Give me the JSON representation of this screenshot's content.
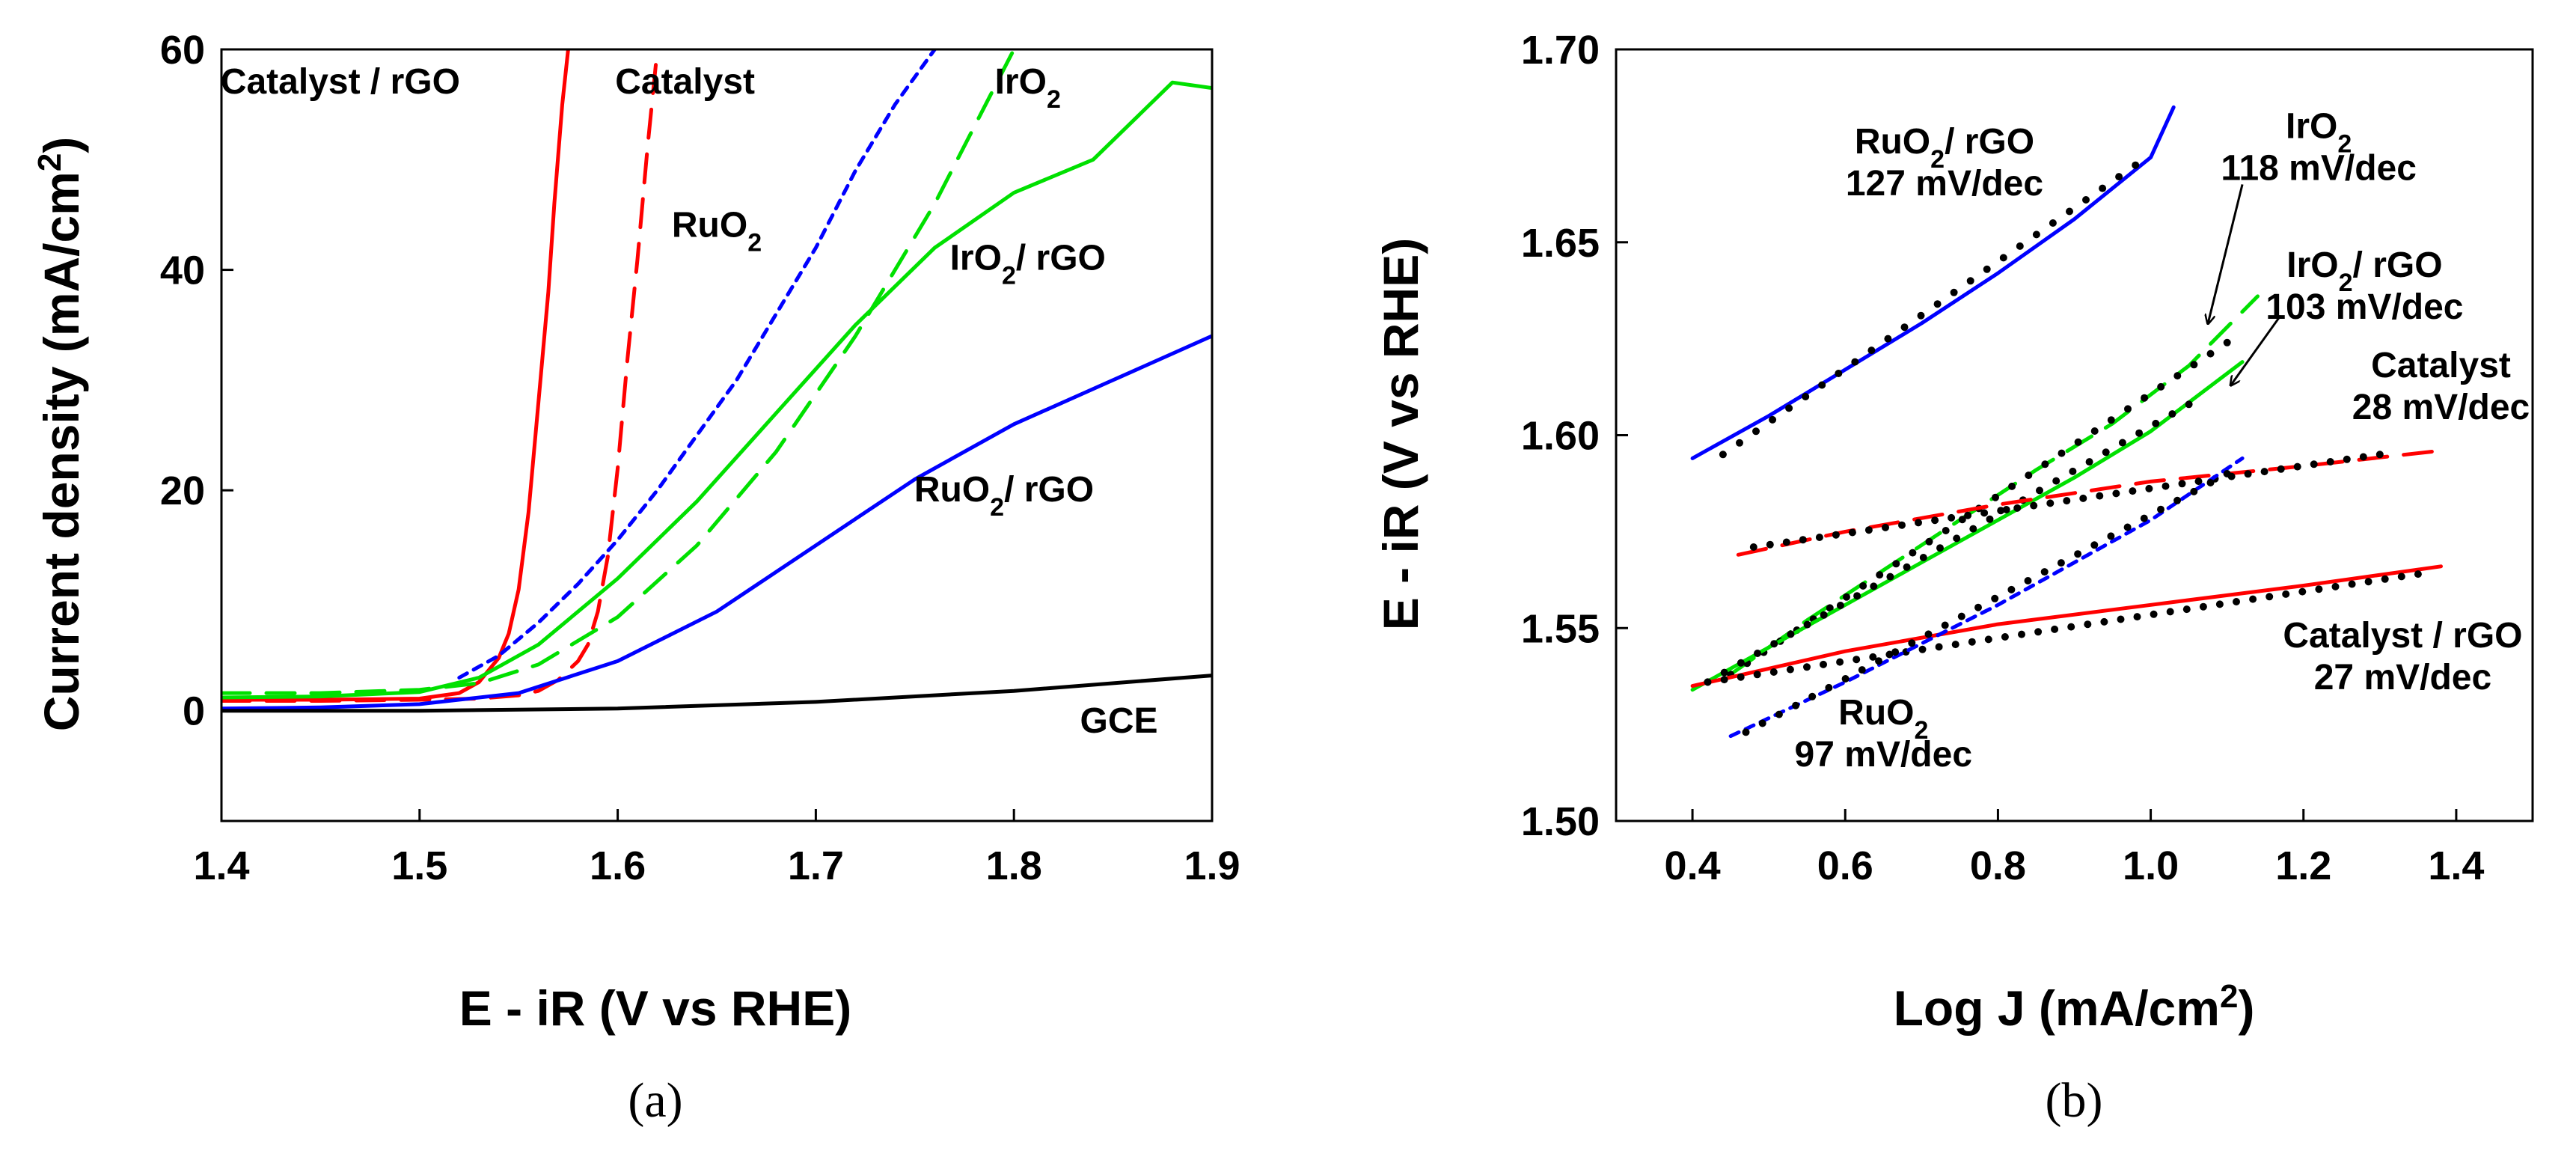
{
  "chart_data": [
    {
      "type": "line",
      "panel_label": "(a)",
      "xlabel": "E - iR (V vs RHE)",
      "ylabel": "Current density (mA/cm2)",
      "ylabel_main": "Current density (mA/cm",
      "ylabel_sup": "2",
      "ylabel_end": ")",
      "xlim": [
        1.4,
        1.9
      ],
      "ylim": [
        -10,
        60
      ],
      "x_ticks": [
        1.4,
        1.5,
        1.6,
        1.7,
        1.8,
        1.9
      ],
      "x_tick_labels": [
        "1.4",
        "1.5",
        "1.6",
        "1.7",
        "1.8",
        "1.9"
      ],
      "y_ticks": [
        0,
        20,
        40,
        60
      ],
      "y_tick_labels": [
        "0",
        "20",
        "40",
        "60"
      ],
      "series": [
        {
          "name": "Catalyst / rGO",
          "color": "#ff0000",
          "dash": "solid",
          "x": [
            1.4,
            1.45,
            1.5,
            1.52,
            1.53,
            1.54,
            1.545,
            1.55,
            1.555,
            1.56,
            1.565,
            1.568,
            1.572,
            1.575
          ],
          "y": [
            1.0,
            1.0,
            1.1,
            1.6,
            2.6,
            4.8,
            7.0,
            11.0,
            18.0,
            28.0,
            38.0,
            46.0,
            55.0,
            60.0
          ]
        },
        {
          "name": "Catalyst",
          "color": "#ff0000",
          "dash": "long",
          "x": [
            1.4,
            1.45,
            1.5,
            1.53,
            1.55,
            1.56,
            1.57,
            1.58,
            1.585,
            1.59,
            1.595,
            1.6,
            1.605,
            1.61,
            1.615,
            1.62
          ],
          "y": [
            0.9,
            0.9,
            1.0,
            1.1,
            1.4,
            1.8,
            2.8,
            4.5,
            6.0,
            9.0,
            14.0,
            22.0,
            32.0,
            41.0,
            51.0,
            60.0
          ]
        },
        {
          "name": "RuO2",
          "color": "#0000ff",
          "dash": "short",
          "x": [
            1.52,
            1.54,
            1.56,
            1.58,
            1.6,
            1.62,
            1.64,
            1.66,
            1.68,
            1.7,
            1.72,
            1.74,
            1.76
          ],
          "y": [
            3.0,
            5.0,
            8.0,
            11.5,
            15.5,
            20.0,
            25.0,
            30.0,
            36.0,
            42.0,
            49.0,
            55.0,
            60.0
          ]
        },
        {
          "name": "IrO2",
          "color": "#00e000",
          "dash": "long",
          "x": [
            1.4,
            1.45,
            1.5,
            1.53,
            1.56,
            1.6,
            1.64,
            1.68,
            1.72,
            1.76,
            1.8
          ],
          "y": [
            1.6,
            1.6,
            1.9,
            2.5,
            4.2,
            8.5,
            15.0,
            23.5,
            34.0,
            46.0,
            60.0
          ]
        },
        {
          "name": "IrO2/ rGO",
          "color": "#00e000",
          "dash": "solid",
          "x": [
            1.4,
            1.45,
            1.5,
            1.53,
            1.56,
            1.6,
            1.64,
            1.68,
            1.72,
            1.76,
            1.8,
            1.84,
            1.88,
            1.9
          ],
          "y": [
            1.2,
            1.3,
            1.7,
            3.0,
            6.0,
            12.0,
            19.0,
            27.0,
            35.0,
            42.0,
            47.0,
            50.0,
            57.0,
            56.5
          ]
        },
        {
          "name": "RuO2/ rGO",
          "color": "#0000ff",
          "dash": "solid",
          "x": [
            1.4,
            1.45,
            1.5,
            1.55,
            1.6,
            1.65,
            1.7,
            1.75,
            1.8,
            1.85,
            1.9
          ],
          "y": [
            0.2,
            0.3,
            0.6,
            1.6,
            4.5,
            9.0,
            15.0,
            21.0,
            26.0,
            30.0,
            34.0
          ]
        },
        {
          "name": "GCE",
          "color": "#000000",
          "dash": "solid",
          "x": [
            1.4,
            1.5,
            1.6,
            1.7,
            1.8,
            1.9
          ],
          "y": [
            0.0,
            0.0,
            0.2,
            0.8,
            1.8,
            3.2
          ]
        }
      ],
      "annotations": [
        {
          "text": "Catalyst / rGO",
          "x": 1.46,
          "y": 56
        },
        {
          "text": "Catalyst",
          "x": 1.634,
          "y": 56
        },
        {
          "text": "RuO",
          "sub": "2",
          "x": 1.65,
          "y": 43
        },
        {
          "text": "IrO",
          "sub": "2",
          "x": 1.807,
          "y": 56
        },
        {
          "text": "IrO",
          "sub": "2",
          "tail": "/ rGO",
          "x": 1.807,
          "y": 40
        },
        {
          "text": "RuO",
          "sub": "2",
          "tail": "/ rGO",
          "x": 1.795,
          "y": 19
        },
        {
          "text": "GCE",
          "x": 1.853,
          "y": -2
        }
      ]
    },
    {
      "type": "line",
      "panel_label": "(b)",
      "xlabel": "Log J (mA/cm2)",
      "xlabel_main": "Log J (mA/cm",
      "xlabel_sup": "2",
      "xlabel_end": ")",
      "ylabel": "E - iR (V vs RHE)",
      "xlim": [
        0.3,
        1.5
      ],
      "ylim": [
        1.5,
        1.7
      ],
      "x_ticks": [
        0.4,
        0.6,
        0.8,
        1.0,
        1.2,
        1.4
      ],
      "x_tick_labels": [
        "0.4",
        "0.6",
        "0.8",
        "1.0",
        "1.2",
        "1.4"
      ],
      "y_ticks": [
        1.5,
        1.55,
        1.6,
        1.65,
        1.7
      ],
      "y_tick_labels": [
        "1.50",
        "1.55",
        "1.60",
        "1.65",
        "1.70"
      ],
      "series": [
        {
          "name": "RuO2/ rGO",
          "color": "#0000ff",
          "dash": "solid",
          "fit": "dotted",
          "x": [
            0.4,
            0.5,
            0.6,
            0.7,
            0.8,
            0.9,
            1.0,
            1.03
          ],
          "y": [
            1.594,
            1.605,
            1.617,
            1.629,
            1.642,
            1.656,
            1.672,
            1.685
          ],
          "fit_x": [
            0.44,
            0.98
          ],
          "fit_y": [
            1.595,
            1.67
          ]
        },
        {
          "name": "IrO2",
          "color": "#00e000",
          "dash": "long",
          "fit": "dotted",
          "x": [
            0.45,
            0.55,
            0.65,
            0.75,
            0.85,
            0.95,
            1.05,
            1.14
          ],
          "y": [
            1.538,
            1.552,
            1.565,
            1.578,
            1.591,
            1.603,
            1.618,
            1.636
          ],
          "fit_x": [
            0.45,
            1.1
          ],
          "fit_y": [
            1.538,
            1.624
          ]
        },
        {
          "name": "IrO2/ rGO",
          "color": "#00e000",
          "dash": "solid",
          "fit": "dotted",
          "x": [
            0.4,
            0.5,
            0.6,
            0.7,
            0.8,
            0.9,
            1.0,
            1.12
          ],
          "y": [
            1.534,
            1.545,
            1.556,
            1.567,
            1.578,
            1.589,
            1.601,
            1.619
          ],
          "fit_x": [
            0.42,
            1.05
          ],
          "fit_y": [
            1.536,
            1.608
          ]
        },
        {
          "name": "Catalyst",
          "color": "#ff0000",
          "dash": "long",
          "fit": "dotted",
          "x": [
            0.46,
            0.6,
            0.8,
            1.0,
            1.2,
            1.38
          ],
          "y": [
            1.569,
            1.575,
            1.582,
            1.588,
            1.592,
            1.596
          ],
          "fit_x": [
            0.48,
            1.3
          ],
          "fit_y": [
            1.571,
            1.595
          ]
        },
        {
          "name": "Catalyst / rGO",
          "color": "#ff0000",
          "dash": "solid",
          "fit": "dotted",
          "x": [
            0.4,
            0.6,
            0.8,
            1.0,
            1.2,
            1.38
          ],
          "y": [
            1.535,
            1.544,
            1.551,
            1.556,
            1.561,
            1.566
          ],
          "fit_x": [
            0.42,
            1.35
          ],
          "fit_y": [
            1.536,
            1.564
          ]
        },
        {
          "name": "RuO2",
          "color": "#0000ff",
          "dash": "short",
          "fit": "dotted",
          "x": [
            0.45,
            0.6,
            0.8,
            1.0,
            1.12
          ],
          "y": [
            1.522,
            1.536,
            1.556,
            1.578,
            1.594
          ],
          "fit_x": [
            0.47,
            1.1
          ],
          "fit_y": [
            1.523,
            1.59
          ]
        }
      ],
      "annotations": [
        {
          "text": "RuO",
          "sub": "2",
          "tail": "/ rGO",
          "line2": "127 mV/dec",
          "x": 0.73,
          "y": 1.673
        },
        {
          "text": "IrO",
          "sub": "2",
          "line2": "118 mV/dec",
          "x": 1.22,
          "y": 1.677
        },
        {
          "text": "IrO",
          "sub": "2",
          "tail": "/ rGO",
          "line2": "103 mV/dec",
          "x": 1.28,
          "y": 1.641
        },
        {
          "text": "Catalyst",
          "line2": "28 mV/dec",
          "x": 1.38,
          "y": 1.615
        },
        {
          "text": "Catalyst / rGO",
          "line2": "27 mV/dec",
          "x": 1.33,
          "y": 1.545
        },
        {
          "text": "RuO",
          "sub": "2",
          "line2": "97 mV/dec",
          "x": 0.65,
          "y": 1.525
        }
      ],
      "arrows": [
        {
          "from_x": 1.12,
          "from_y": 1.665,
          "to_x": 1.075,
          "to_y": 1.629
        },
        {
          "from_x": 1.17,
          "from_y": 1.631,
          "to_x": 1.105,
          "to_y": 1.613
        }
      ]
    }
  ]
}
